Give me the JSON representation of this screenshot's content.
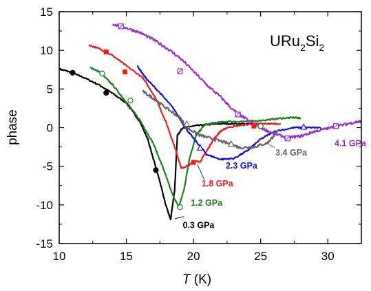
{
  "chart_data": {
    "type": "line",
    "title": "URu2Si2",
    "title_parts": {
      "base1": "URu",
      "sub1": "2",
      "base2": "Si",
      "sub2": "2"
    },
    "xlabel": {
      "italic": "T",
      "unit": " (K)"
    },
    "ylabel": "phase",
    "xlim": [
      10,
      32.5
    ],
    "ylim": [
      -15,
      15
    ],
    "xticks": [
      10,
      15,
      20,
      25,
      30
    ],
    "yticks": [
      15,
      10,
      5,
      0,
      -5,
      -10,
      -15
    ],
    "grid": false,
    "legend": "inline labels",
    "series": [
      {
        "name": "0.3 GPa",
        "color": "#000000",
        "marker": "filled-circle",
        "label_pos": [
          19.2,
          -13
        ],
        "points": [
          [
            10,
            7.6
          ],
          [
            10.8,
            7.2
          ],
          [
            11.8,
            6.5
          ],
          [
            13,
            5.5
          ],
          [
            14,
            4.4
          ],
          [
            15,
            3.2
          ],
          [
            16,
            0.8
          ],
          [
            16.6,
            -1.5
          ],
          [
            17,
            -4
          ],
          [
            17.5,
            -7
          ],
          [
            17.9,
            -9.8
          ],
          [
            18.3,
            -11.9
          ],
          [
            18.6,
            -8
          ],
          [
            18.8,
            -1
          ],
          [
            19.2,
            0
          ],
          [
            20,
            0.2
          ],
          [
            21,
            0.4
          ],
          [
            22,
            0.5
          ],
          [
            23,
            0.5
          ],
          [
            24.5,
            0.5
          ]
        ],
        "markers": [
          [
            11,
            7.1
          ],
          [
            13.5,
            4.5
          ],
          [
            17.2,
            -5.5
          ]
        ]
      },
      {
        "name": "1.2 GPa",
        "color": "#1e8020",
        "marker": "open-circle",
        "label_pos": [
          19.8,
          -10.1
        ],
        "points": [
          [
            12.3,
            7.8
          ],
          [
            13,
            7.2
          ],
          [
            14,
            5.5
          ],
          [
            15,
            3.3
          ],
          [
            16,
            1
          ],
          [
            17,
            -2
          ],
          [
            17.8,
            -5.5
          ],
          [
            18.4,
            -8.5
          ],
          [
            18.9,
            -10.3
          ],
          [
            19.3,
            -8
          ],
          [
            19.7,
            -4
          ],
          [
            20.2,
            -1
          ],
          [
            20.8,
            0.3
          ],
          [
            21.5,
            0.6
          ],
          [
            22.5,
            0.8
          ],
          [
            24,
            0.8
          ],
          [
            25.5,
            1
          ],
          [
            26.5,
            1.2
          ],
          [
            27.5,
            1.3
          ],
          [
            28,
            1.2
          ]
        ],
        "markers": [
          [
            13.2,
            7
          ],
          [
            15.3,
            3.5
          ],
          [
            19,
            -10.3
          ],
          [
            25,
            0.2
          ]
        ]
      },
      {
        "name": "1.8 GPa",
        "color": "#ee1d1d",
        "marker": "filled-square",
        "label_pos": [
          20.6,
          -7.6
        ],
        "points": [
          [
            12.2,
            10.7
          ],
          [
            13,
            10.2
          ],
          [
            14,
            9.3
          ],
          [
            15,
            8
          ],
          [
            16.2,
            6.5
          ],
          [
            17.2,
            3.8
          ],
          [
            18,
            0.5
          ],
          [
            18.7,
            -3
          ],
          [
            19.1,
            -5.3
          ],
          [
            19.7,
            -4.8
          ],
          [
            20.1,
            -4.4
          ],
          [
            20.5,
            -4.4
          ],
          [
            21,
            -3
          ],
          [
            21.5,
            -1.5
          ],
          [
            22,
            -0.5
          ],
          [
            22.5,
            0
          ],
          [
            23.5,
            0.3
          ],
          [
            24.5,
            0.5
          ],
          [
            25.5,
            0.5
          ],
          [
            26.5,
            0.5
          ]
        ],
        "markers": [
          [
            13.5,
            9.8
          ],
          [
            14.9,
            7.2
          ],
          [
            20,
            -4.5
          ],
          [
            24.5,
            0.2
          ]
        ]
      },
      {
        "name": "2.3 GPa",
        "color": "#1212d6",
        "marker": "open-triangle",
        "label_pos": [
          22.4,
          -5.3
        ],
        "points": [
          [
            15.8,
            8
          ],
          [
            16.5,
            6.3
          ],
          [
            17.5,
            4.5
          ],
          [
            18.5,
            2.5
          ],
          [
            19.5,
            -0.3
          ],
          [
            20.2,
            -1.8
          ],
          [
            21,
            -3.5
          ],
          [
            22,
            -4.1
          ],
          [
            23,
            -4
          ],
          [
            24,
            -3
          ],
          [
            25,
            -1.5
          ],
          [
            26,
            -0.5
          ],
          [
            27.5,
            0
          ],
          [
            28.5,
            0
          ],
          [
            29.5,
            0
          ]
        ],
        "markers": [
          [
            20.5,
            -2.6
          ],
          [
            28.2,
            0.1
          ]
        ]
      },
      {
        "name": "3.4 GPa",
        "color": "#666666",
        "marker": "open-triangle",
        "label_pos": [
          26.1,
          -3.6
        ],
        "points": [
          [
            16.2,
            4.7
          ],
          [
            17,
            3.8
          ],
          [
            18,
            2.5
          ],
          [
            19,
            1.3
          ],
          [
            19.5,
            0
          ],
          [
            20.5,
            -1
          ],
          [
            21.5,
            -1.5
          ],
          [
            22.5,
            -2
          ],
          [
            23.5,
            -2.6
          ],
          [
            24.5,
            -2.5
          ],
          [
            25.5,
            -2
          ],
          [
            26,
            -1
          ],
          [
            26.3,
            -0.3
          ]
        ],
        "markers": [
          [
            19.5,
            0.5
          ],
          [
            22.8,
            -2.1
          ]
        ]
      },
      {
        "name": "4.1 GPa",
        "color": "#9933cc",
        "marker": "open-square",
        "label_pos": [
          30.5,
          -2.4
        ],
        "points": [
          [
            14,
            13.4
          ],
          [
            15,
            12.9
          ],
          [
            16,
            12.3
          ],
          [
            17,
            11.4
          ],
          [
            18,
            10.3
          ],
          [
            19,
            9
          ],
          [
            20,
            7.3
          ],
          [
            21,
            5.5
          ],
          [
            22,
            4
          ],
          [
            23,
            2.2
          ],
          [
            24,
            1
          ],
          [
            25,
            0
          ],
          [
            26,
            -0.8
          ],
          [
            27,
            -1.3
          ],
          [
            28,
            -1.1
          ],
          [
            29,
            -0.5
          ],
          [
            30,
            -0.1
          ],
          [
            31,
            0.3
          ],
          [
            32,
            0.7
          ],
          [
            32.5,
            0.8
          ]
        ],
        "markers": [
          [
            14.6,
            13.1
          ],
          [
            19,
            7.3
          ],
          [
            23.3,
            1.7
          ],
          [
            27,
            -1.4
          ],
          [
            30.6,
            0.2
          ]
        ]
      }
    ]
  }
}
